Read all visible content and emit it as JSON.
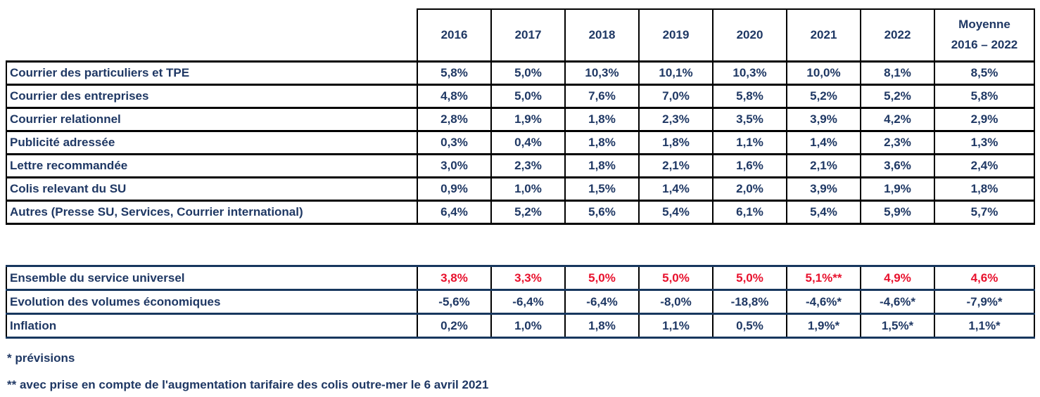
{
  "colors": {
    "navy_text": "#1F3864",
    "red_text": "#E8112D",
    "border_black": "#000000",
    "border_navy": "#17375E"
  },
  "header": {
    "years": [
      "2016",
      "2017",
      "2018",
      "2019",
      "2020",
      "2021",
      "2022"
    ],
    "moyenne": {
      "line1": "Moyenne",
      "line2": "2016 – 2022"
    }
  },
  "table1": {
    "rows": [
      {
        "label": "Courrier des particuliers et TPE",
        "values": [
          "5,8%",
          "5,0%",
          "10,3%",
          "10,1%",
          "10,3%",
          "10,0%",
          "8,1%",
          "8,5%"
        ]
      },
      {
        "label": "Courrier des entreprises",
        "values": [
          "4,8%",
          "5,0%",
          "7,6%",
          "7,0%",
          "5,8%",
          "5,2%",
          "5,2%",
          "5,8%"
        ]
      },
      {
        "label": "Courrier relationnel",
        "values": [
          "2,8%",
          "1,9%",
          "1,8%",
          "2,3%",
          "3,5%",
          "3,9%",
          "4,2%",
          "2,9%"
        ]
      },
      {
        "label": "Publicité adressée",
        "values": [
          "0,3%",
          "0,4%",
          "1,8%",
          "1,8%",
          "1,1%",
          "1,4%",
          "2,3%",
          "1,3%"
        ]
      },
      {
        "label": "Lettre recommandée",
        "values": [
          "3,0%",
          "2,3%",
          "1,8%",
          "2,1%",
          "1,6%",
          "2,1%",
          "3,6%",
          "2,4%"
        ]
      },
      {
        "label": "Colis relevant du SU",
        "values": [
          "0,9%",
          "1,0%",
          "1,5%",
          "1,4%",
          "2,0%",
          "3,9%",
          "1,9%",
          "1,8%"
        ]
      },
      {
        "label": "Autres (Presse SU, Services, Courrier international)",
        "values": [
          "6,4%",
          "5,2%",
          "5,6%",
          "5,4%",
          "6,1%",
          "5,4%",
          "5,9%",
          "5,7%"
        ]
      }
    ]
  },
  "table2": {
    "rows": [
      {
        "label": "Ensemble du service universel",
        "style": "red",
        "values": [
          "3,8%",
          "3,3%",
          "5,0%",
          "5,0%",
          "5,0%",
          "5,1%**",
          "4,9%",
          "4,6%"
        ]
      },
      {
        "label": "Evolution des volumes économiques",
        "style": "navy",
        "values": [
          "-5,6%",
          "-6,4%",
          "-6,4%",
          "-8,0%",
          "-18,8%",
          "-4,6%*",
          "-4,6%*",
          "-7,9%*"
        ]
      },
      {
        "label": "Inflation",
        "style": "navy",
        "values": [
          "0,2%",
          "1,0%",
          "1,8%",
          "1,1%",
          "0,5%",
          "1,9%*",
          "1,5%*",
          "1,1%*"
        ]
      }
    ]
  },
  "footnotes": [
    "* prévisions",
    "** avec prise en compte de l'augmentation tarifaire des colis outre-mer le 6 avril 2021"
  ]
}
